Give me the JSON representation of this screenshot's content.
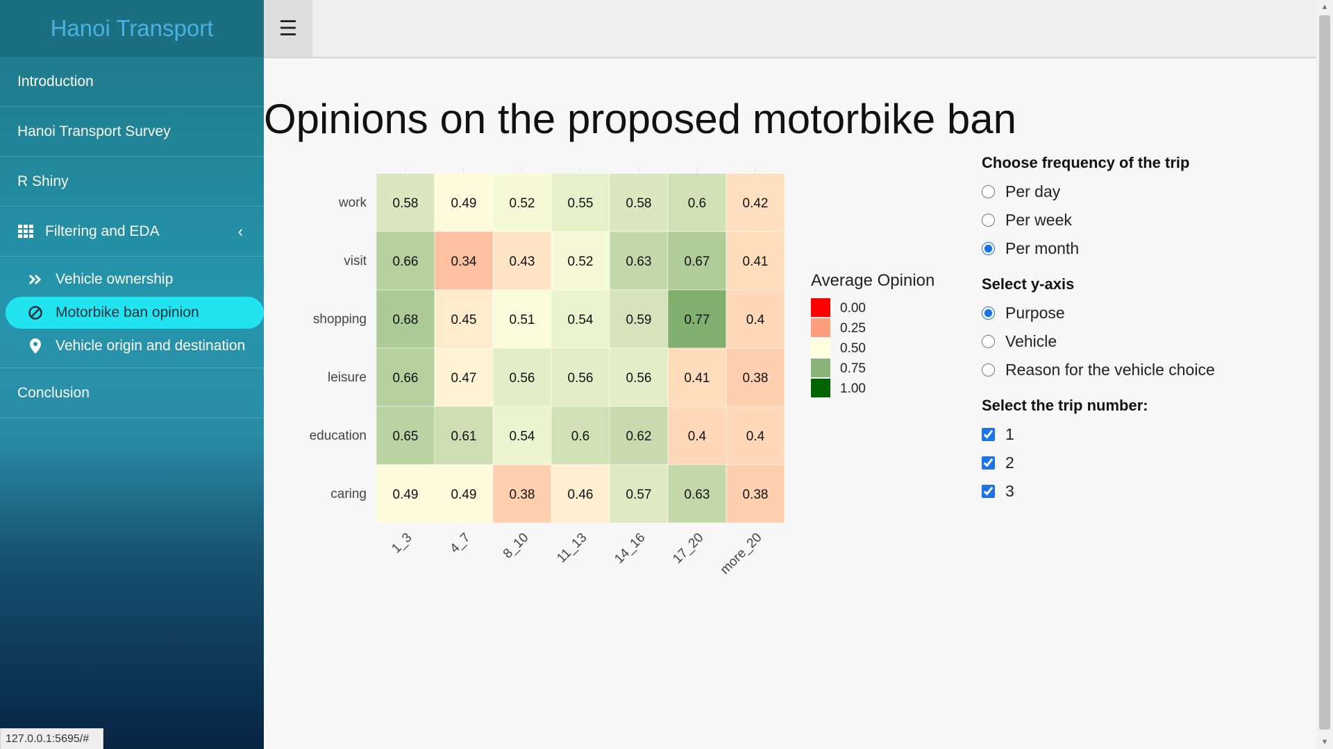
{
  "brand": "Hanoi Transport",
  "nav": {
    "introduction": "Introduction",
    "survey": "Hanoi Transport Survey",
    "rshiny": "R Shiny",
    "filtering": "Filtering and EDA",
    "sub": {
      "vehicle_ownership": "Vehicle ownership",
      "motorbike_ban": "Motorbike ban opinion",
      "origin_destination": "Vehicle origin and destination"
    },
    "conclusion": "Conclusion"
  },
  "status_url": "127.0.0.1:5695/#",
  "page_title": "Opinions on the proposed motorbike ban",
  "controls": {
    "frequency": {
      "label": "Choose frequency of the trip",
      "options": [
        "Per day",
        "Per week",
        "Per month"
      ],
      "selected": "Per month"
    },
    "yaxis": {
      "label": "Select y-axis",
      "options": [
        "Purpose",
        "Vehicle",
        "Reason for the vehicle choice"
      ],
      "selected": "Purpose"
    },
    "trips": {
      "label": "Select the trip number:",
      "options": [
        "1",
        "2",
        "3"
      ],
      "checked": [
        "1",
        "2",
        "3"
      ]
    }
  },
  "chart_data": {
    "type": "heatmap",
    "x": [
      "1_3",
      "4_7",
      "8_10",
      "11_13",
      "14_16",
      "17_20",
      "more_20"
    ],
    "y": [
      "work",
      "visit",
      "shopping",
      "leisure",
      "education",
      "caring"
    ],
    "values": [
      [
        0.58,
        0.49,
        0.52,
        0.55,
        0.58,
        0.6,
        0.42
      ],
      [
        0.66,
        0.34,
        0.43,
        0.52,
        0.63,
        0.67,
        0.41
      ],
      [
        0.68,
        0.45,
        0.51,
        0.54,
        0.59,
        0.77,
        0.4
      ],
      [
        0.66,
        0.47,
        0.56,
        0.56,
        0.56,
        0.41,
        0.38
      ],
      [
        0.65,
        0.61,
        0.54,
        0.6,
        0.62,
        0.4,
        0.4
      ],
      [
        0.49,
        0.49,
        0.38,
        0.46,
        0.57,
        0.63,
        0.38
      ]
    ],
    "legend": {
      "title": "Average Opinion",
      "breaks": [
        "0.00",
        "0.25",
        "0.50",
        "0.75",
        "1.00"
      ],
      "colors": [
        "#ff0000",
        "#fc9e7c",
        "#ffffe0",
        "#8bb578",
        "#006400"
      ]
    },
    "value_range": [
      0,
      1
    ]
  }
}
